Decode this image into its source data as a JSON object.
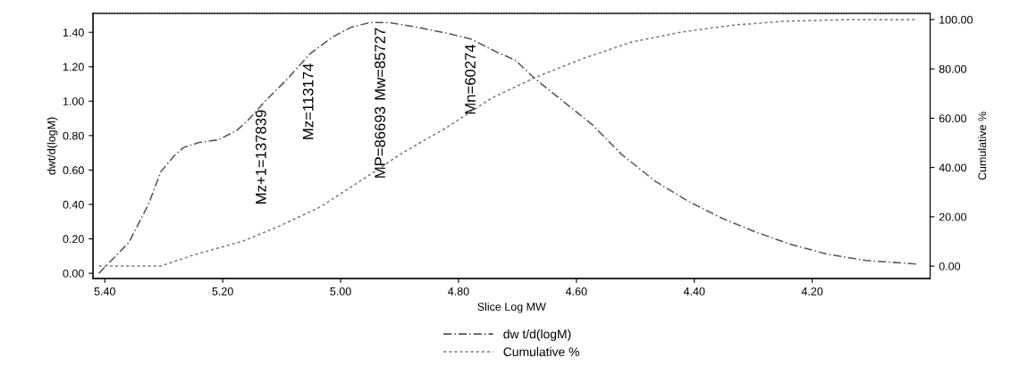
{
  "chart_data": {
    "type": "line",
    "xlabel": "Slice Log MW",
    "ylabel": "dwt/d(logM)",
    "y2label": "Cumulative %",
    "xlim": [
      5.42,
      4.0
    ],
    "xticks": [
      {
        "value": 5.4,
        "label": "5.40"
      },
      {
        "value": 5.2,
        "label": "5.20"
      },
      {
        "value": 5.0,
        "label": "5.00"
      },
      {
        "value": 4.8,
        "label": "4.80"
      },
      {
        "value": 4.6,
        "label": "4.60"
      },
      {
        "value": 4.4,
        "label": "4.40"
      },
      {
        "value": 4.2,
        "label": "4.20"
      }
    ],
    "ylim": [
      -0.03,
      1.51
    ],
    "yticks": [
      {
        "value": 0,
        "label": "0.00"
      },
      {
        "value": 0.2,
        "label": "0.20"
      },
      {
        "value": 0.4,
        "label": "0.40"
      },
      {
        "value": 0.6,
        "label": "0.60"
      },
      {
        "value": 0.8,
        "label": "0.80"
      },
      {
        "value": 1.0,
        "label": "1.00"
      },
      {
        "value": 1.2,
        "label": "1.20"
      },
      {
        "value": 1.4,
        "label": "1.40"
      }
    ],
    "y2lim": [
      -5,
      102.5
    ],
    "y2ticks": [
      {
        "value": 0,
        "label": "0.00"
      },
      {
        "value": 20,
        "label": "20.00"
      },
      {
        "value": 40,
        "label": "40.00"
      },
      {
        "value": 60,
        "label": "60.00"
      },
      {
        "value": 80,
        "label": "80.00"
      },
      {
        "value": 100,
        "label": "100.00"
      }
    ],
    "legend": "bottom",
    "grid": false,
    "series": [
      {
        "name": "dw t/d(logM)",
        "color": "#555555",
        "line_style": "dashed",
        "x": [
          5.41,
          5.396,
          5.359,
          5.326,
          5.305,
          5.283,
          5.267,
          5.24,
          5.208,
          5.176,
          5.154,
          5.128,
          5.09,
          5.052,
          5.015,
          4.982,
          4.95,
          4.918,
          4.875,
          4.821,
          4.778,
          4.735,
          4.704,
          4.67,
          4.63,
          4.574,
          4.523,
          4.466,
          4.409,
          4.352,
          4.296,
          4.239,
          4.177,
          4.108,
          4.023
        ],
        "values": [
          0.0,
          0.05,
          0.18,
          0.4,
          0.59,
          0.68,
          0.73,
          0.76,
          0.775,
          0.83,
          0.9,
          1.0,
          1.13,
          1.275,
          1.37,
          1.43,
          1.457,
          1.457,
          1.433,
          1.396,
          1.36,
          1.285,
          1.239,
          1.13,
          1.02,
          0.866,
          0.69,
          0.534,
          0.416,
          0.318,
          0.24,
          0.171,
          0.113,
          0.074,
          0.054
        ]
      },
      {
        "name": "Cumulative %",
        "color": "#777777",
        "line_style": "dotted",
        "axis": "y2",
        "x": [
          5.41,
          5.305,
          5.251,
          5.165,
          5.106,
          5.036,
          4.961,
          4.896,
          4.821,
          4.745,
          4.67,
          4.591,
          4.506,
          4.42,
          4.335,
          4.25,
          4.137,
          4.023
        ],
        "values": [
          0,
          0,
          4.4,
          10.2,
          16,
          23.8,
          35.4,
          45.8,
          56.1,
          68,
          76.5,
          84,
          90.9,
          95,
          97.7,
          99.3,
          100,
          100
        ]
      }
    ],
    "annotations": [
      {
        "text": "Mz+1=137839",
        "x": 5.133,
        "y": 0.98
      },
      {
        "text": "Mz=113174",
        "x": 5.053,
        "y": 1.25
      },
      {
        "text": "Mw=85727",
        "x": 4.931,
        "y": 1.457
      },
      "MP=86693",
      {
        "text": "Mn=60274",
        "x": 4.778,
        "y": 1.36
      }
    ]
  }
}
